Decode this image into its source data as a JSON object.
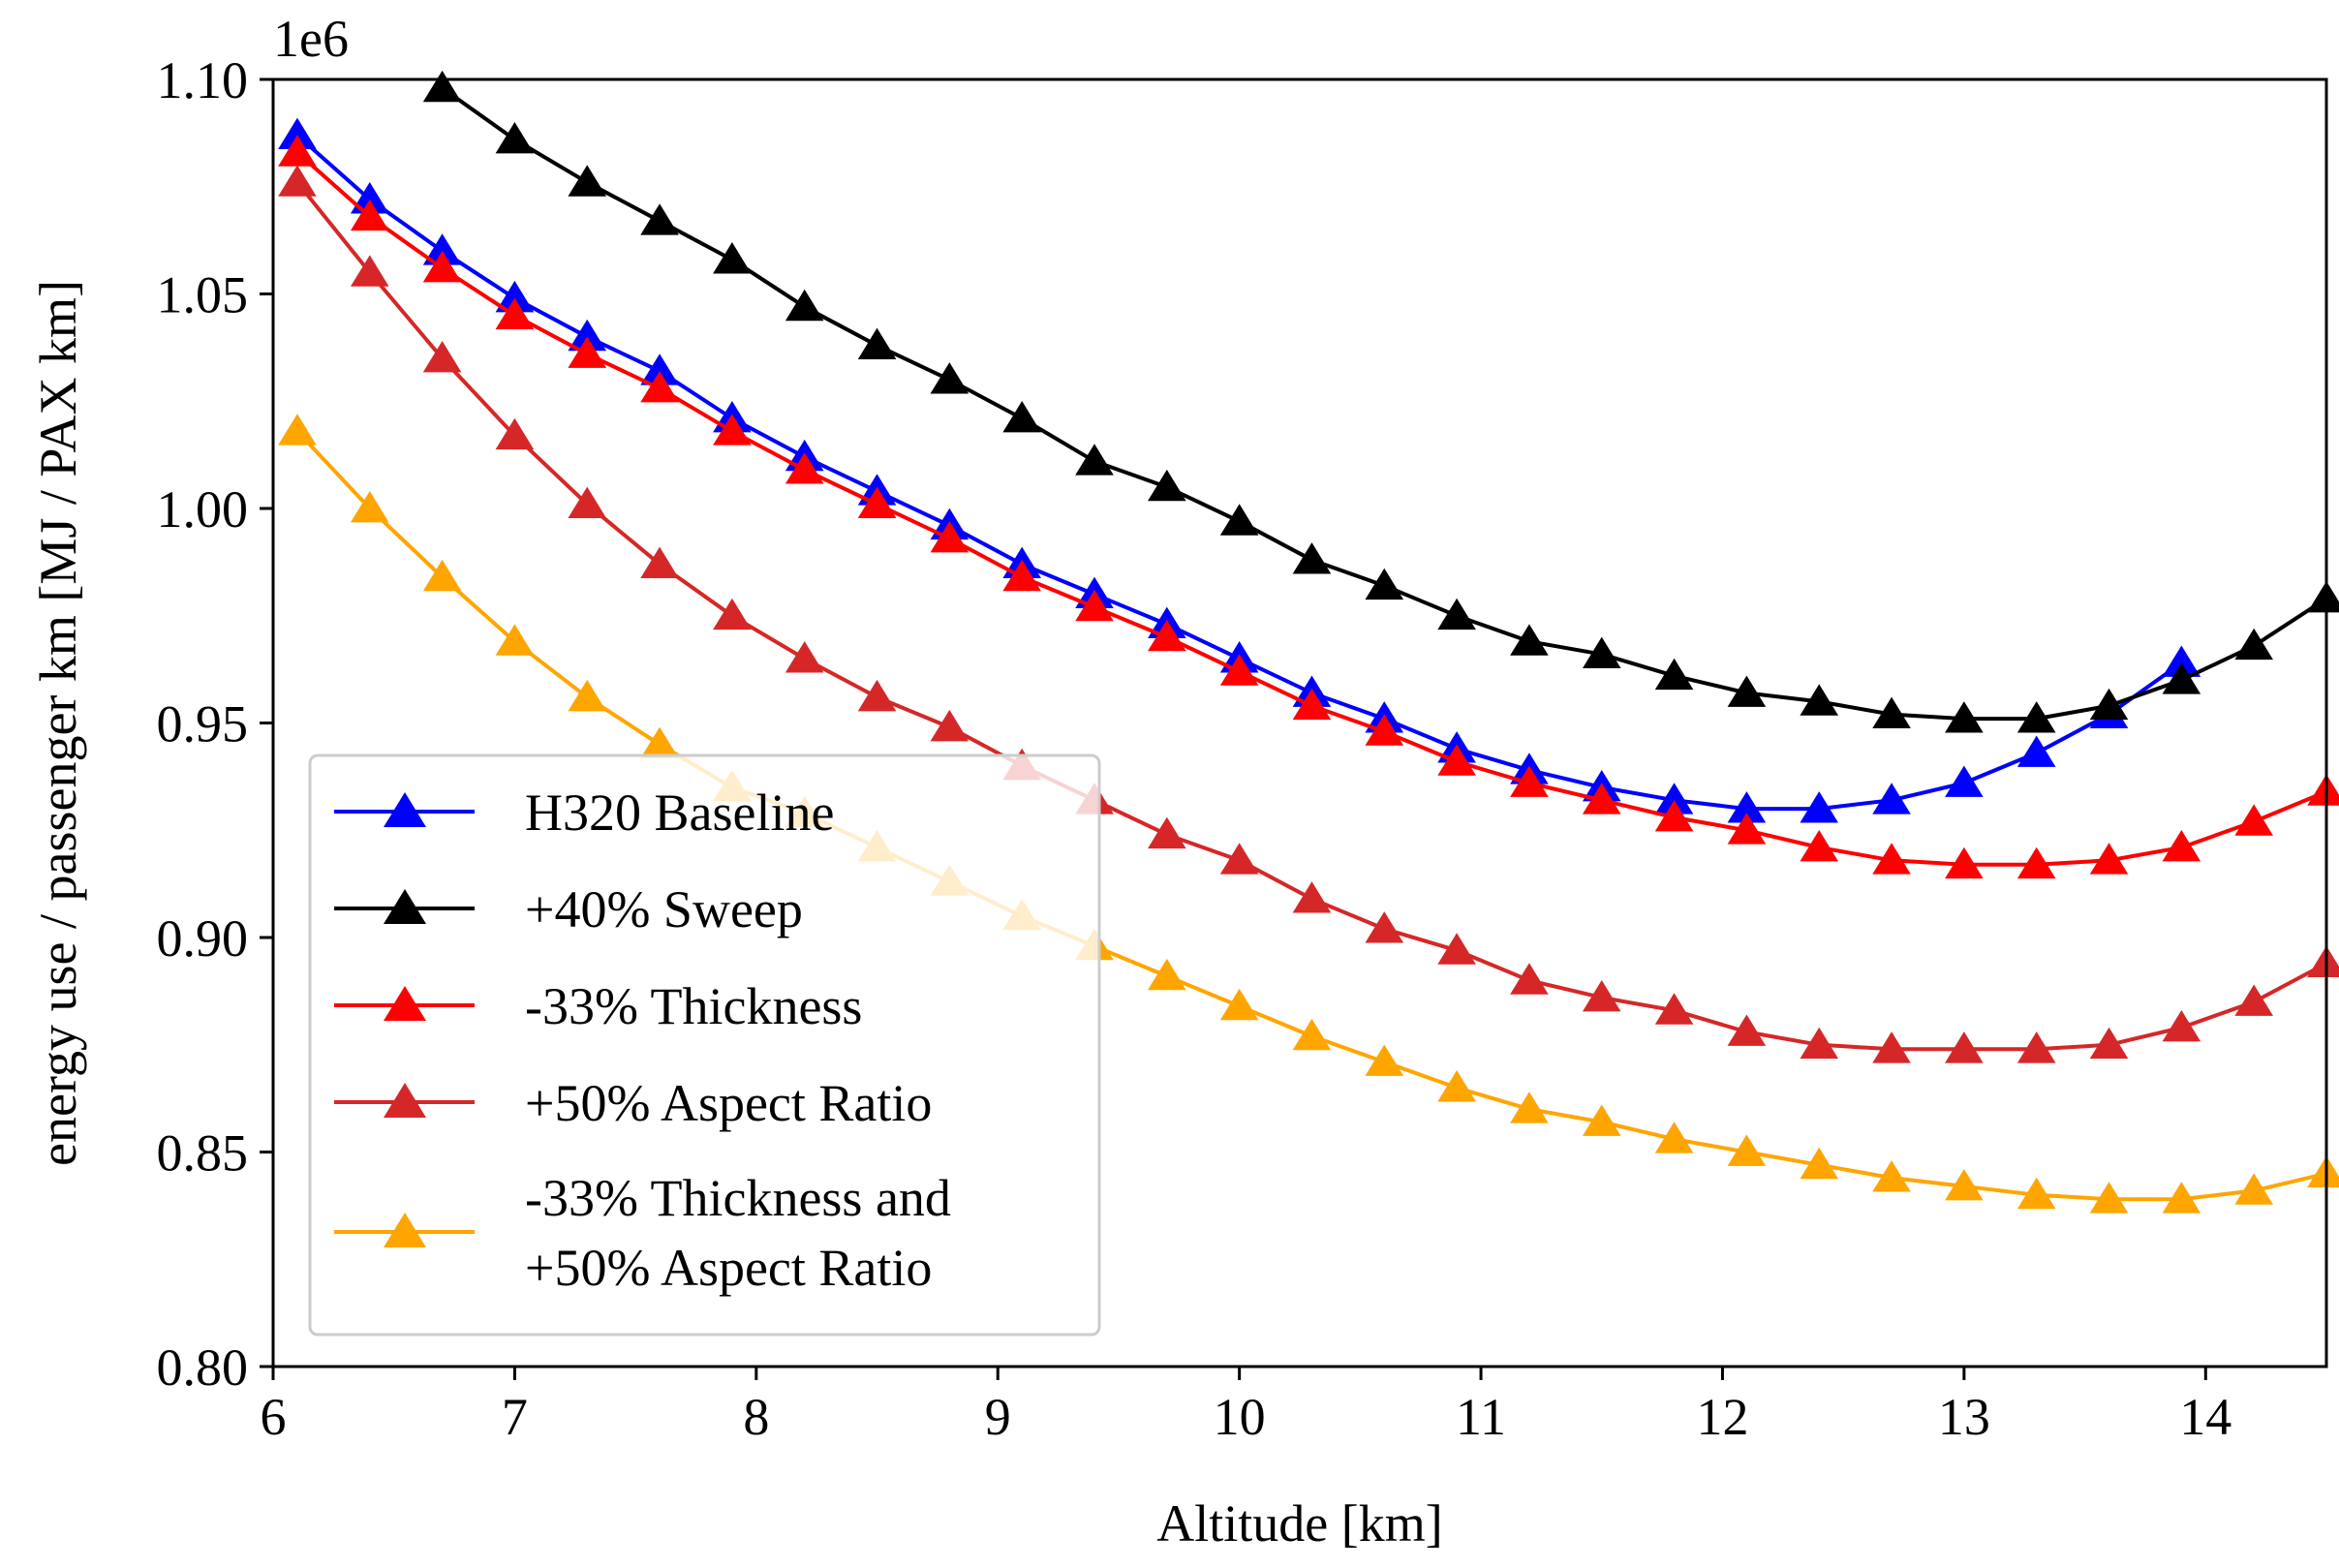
{
  "chart_data": {
    "type": "line",
    "title": "",
    "xlabel": "Altitude [km]",
    "ylabel": "energy use / passenger km [MJ / PAX km]",
    "offset_text": "1e6",
    "xlim": [
      6,
      14.5
    ],
    "ylim": [
      0.8,
      1.1
    ],
    "xticks": [
      6,
      7,
      8,
      9,
      10,
      11,
      12,
      13,
      14
    ],
    "xtick_labels": [
      "6",
      "7",
      "8",
      "9",
      "10",
      "11",
      "12",
      "13",
      "14"
    ],
    "yticks": [
      0.8,
      0.85,
      0.9,
      0.95,
      1.0,
      1.05,
      1.1
    ],
    "ytick_labels": [
      "0.80",
      "0.85",
      "0.90",
      "0.95",
      "1.00",
      "1.05",
      "1.10"
    ],
    "grid": false,
    "legend_position": "lower-left",
    "marker": "triangle",
    "series": [
      {
        "name": "H320 Baseline",
        "color": "#0000ff",
        "x": [
          6.1,
          6.4,
          6.7,
          7.0,
          7.3,
          7.6,
          7.9,
          8.2,
          8.5,
          8.8,
          9.1,
          9.4,
          9.7,
          10.0,
          10.3,
          10.6,
          10.9,
          11.2,
          11.5,
          11.8,
          12.1,
          12.4,
          12.7,
          13.0,
          13.3,
          13.6,
          13.9
        ],
        "y": [
          1.087,
          1.072,
          1.06,
          1.049,
          1.04,
          1.032,
          1.021,
          1.012,
          1.004,
          0.996,
          0.987,
          0.98,
          0.973,
          0.965,
          0.957,
          0.951,
          0.944,
          0.939,
          0.935,
          0.932,
          0.93,
          0.93,
          0.932,
          0.936,
          0.943,
          0.952,
          0.964
        ]
      },
      {
        "name": "+40% Sweep",
        "color": "#000000",
        "x": [
          6.7,
          7.0,
          7.3,
          7.6,
          7.9,
          8.2,
          8.5,
          8.8,
          9.1,
          9.4,
          9.7,
          10.0,
          10.3,
          10.6,
          10.9,
          11.2,
          11.5,
          11.8,
          12.1,
          12.4,
          12.7,
          13.0,
          13.3,
          13.6,
          13.9,
          14.2,
          14.5
        ],
        "y": [
          1.098,
          1.086,
          1.076,
          1.067,
          1.058,
          1.047,
          1.038,
          1.03,
          1.021,
          1.011,
          1.005,
          0.997,
          0.988,
          0.982,
          0.975,
          0.969,
          0.966,
          0.961,
          0.957,
          0.955,
          0.952,
          0.951,
          0.951,
          0.954,
          0.96,
          0.968,
          0.979
        ]
      },
      {
        "name": "-33% Thickness",
        "color": "#ff0000",
        "x": [
          6.1,
          6.4,
          6.7,
          7.0,
          7.3,
          7.6,
          7.9,
          8.2,
          8.5,
          8.8,
          9.1,
          9.4,
          9.7,
          10.0,
          10.3,
          10.6,
          10.9,
          11.2,
          11.5,
          11.8,
          12.1,
          12.4,
          12.7,
          13.0,
          13.3,
          13.6,
          13.9,
          14.2,
          14.5
        ],
        "y": [
          1.083,
          1.068,
          1.056,
          1.045,
          1.036,
          1.028,
          1.018,
          1.009,
          1.001,
          0.993,
          0.984,
          0.977,
          0.97,
          0.962,
          0.954,
          0.948,
          0.941,
          0.936,
          0.932,
          0.928,
          0.925,
          0.921,
          0.918,
          0.917,
          0.917,
          0.918,
          0.921,
          0.927,
          0.934
        ]
      },
      {
        "name": "+50% Aspect Ratio",
        "color": "#d62728",
        "x": [
          6.1,
          6.4,
          6.7,
          7.0,
          7.3,
          7.6,
          7.9,
          8.2,
          8.5,
          8.8,
          9.1,
          9.4,
          9.7,
          10.0,
          10.3,
          10.6,
          10.9,
          11.2,
          11.5,
          11.8,
          12.1,
          12.4,
          12.7,
          13.0,
          13.3,
          13.6,
          13.9,
          14.2,
          14.5
        ],
        "y": [
          1.076,
          1.055,
          1.035,
          1.017,
          1.001,
          0.987,
          0.975,
          0.965,
          0.956,
          0.949,
          0.94,
          0.932,
          0.924,
          0.918,
          0.909,
          0.902,
          0.897,
          0.89,
          0.886,
          0.883,
          0.878,
          0.875,
          0.874,
          0.874,
          0.874,
          0.875,
          0.879,
          0.885,
          0.894
        ]
      },
      {
        "name": "-33% Thickness and\n+50% Aspect Ratio",
        "name_lines": [
          "-33% Thickness and",
          "+50% Aspect Ratio"
        ],
        "color": "#ffa500",
        "x": [
          6.1,
          6.4,
          6.7,
          7.0,
          7.3,
          7.6,
          7.9,
          8.2,
          8.5,
          8.8,
          9.1,
          9.4,
          9.7,
          10.0,
          10.3,
          10.6,
          10.9,
          11.2,
          11.5,
          11.8,
          12.1,
          12.4,
          12.7,
          13.0,
          13.3,
          13.6,
          13.9,
          14.2,
          14.5
        ],
        "y": [
          1.018,
          1.0,
          0.984,
          0.969,
          0.956,
          0.945,
          0.935,
          0.929,
          0.921,
          0.913,
          0.905,
          0.898,
          0.891,
          0.884,
          0.877,
          0.871,
          0.865,
          0.86,
          0.857,
          0.853,
          0.85,
          0.847,
          0.844,
          0.842,
          0.84,
          0.839,
          0.839,
          0.841,
          0.845
        ]
      }
    ]
  }
}
